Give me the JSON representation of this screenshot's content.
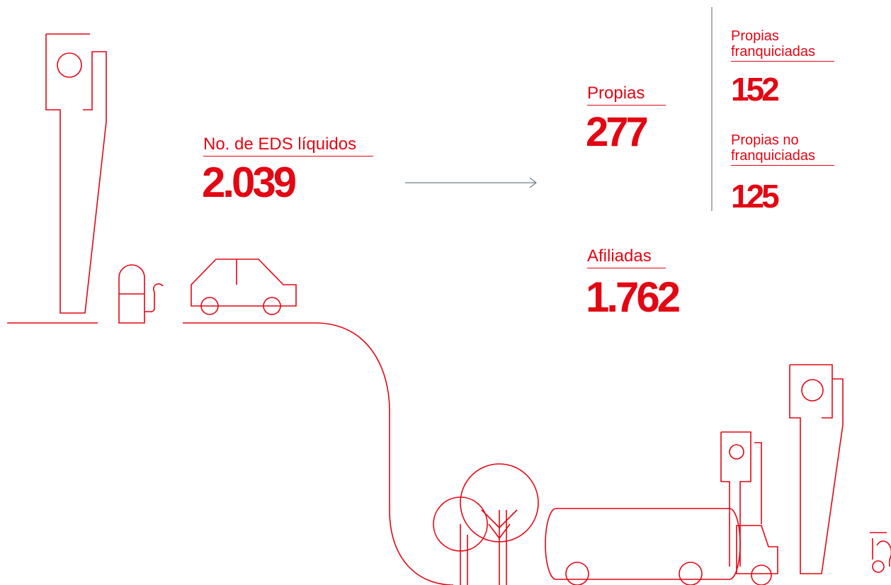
{
  "total": {
    "label": "No. de EDS líquidos",
    "value": "2.039"
  },
  "propias": {
    "label": "Propias",
    "value": "277"
  },
  "franquiciadas": {
    "label": "Propias franquiciadas",
    "value": "152"
  },
  "no_franquiciadas": {
    "label": "Propias no franquiciadas",
    "value": "125"
  },
  "afiliadas": {
    "label": "Afiliadas",
    "value": "1.762"
  }
}
